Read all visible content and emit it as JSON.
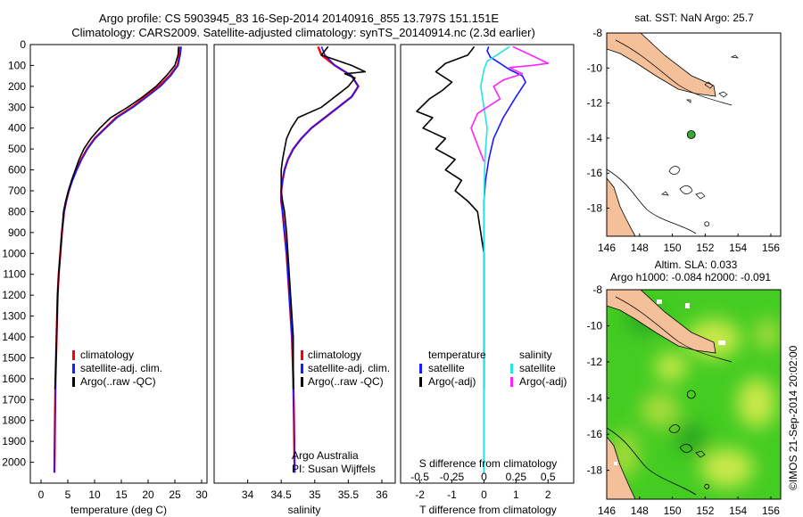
{
  "header": {
    "line1": "Argo profile: CS 5903945_83 16-Sep-2014 20140916_855 13.797S 151.151E",
    "line2": "Climatology: CARS2009. Satellite-adjusted climatology: synTS_20140914.nc (2.3d earlier)"
  },
  "colors": {
    "climatology": "#ff0000",
    "satellite": "#1a1aff",
    "argo": "#000000",
    "sal_satellite": "#22e6e6",
    "sal_argo": "#ff22ff",
    "land": "#f4c09a",
    "sla_field": "#44cc22"
  },
  "chart_data": [
    {
      "type": "line",
      "id": "temperature",
      "xlabel": "temperature (deg C)",
      "ylabel": "",
      "xlim": [
        -2,
        31
      ],
      "ylim": [
        2100,
        0
      ],
      "xticks": [
        0,
        5,
        10,
        15,
        20,
        25,
        30
      ],
      "yticks": [
        0,
        100,
        200,
        300,
        400,
        500,
        600,
        700,
        800,
        900,
        1000,
        1100,
        1200,
        1300,
        1400,
        1500,
        1600,
        1700,
        1800,
        1900,
        2000
      ],
      "legend": [
        "climatology",
        "satellite-adj. clim.",
        "Argo(..raw -QC)"
      ],
      "series": [
        {
          "name": "climatology",
          "color": "#ff0000",
          "x": [
            26.0,
            25.9,
            25.5,
            24,
            22,
            19.5,
            17,
            14,
            12,
            10,
            8.6,
            7.5,
            6.6,
            5.8,
            5.2,
            4.7,
            4.3,
            3.9,
            3.6,
            3.3,
            3.1,
            3.0,
            2.9,
            2.7,
            2.6,
            2.5
          ],
          "y": [
            10,
            50,
            100,
            150,
            200,
            250,
            300,
            350,
            400,
            450,
            500,
            550,
            600,
            650,
            700,
            750,
            800,
            900,
            1000,
            1100,
            1200,
            1300,
            1400,
            1600,
            1800,
            2050
          ]
        },
        {
          "name": "satellite-adj. clim.",
          "color": "#1a1aff",
          "x": [
            26.2,
            26.0,
            25.6,
            24.2,
            22.3,
            19.8,
            17.2,
            14.2,
            12.1,
            10.1,
            8.7,
            7.6,
            6.7,
            5.9,
            5.2,
            4.7,
            4.3,
            3.9,
            3.6,
            3.3,
            3.1,
            3.0,
            2.9,
            2.7,
            2.6,
            2.5
          ],
          "y": [
            10,
            50,
            100,
            150,
            200,
            250,
            300,
            350,
            400,
            450,
            500,
            550,
            600,
            650,
            700,
            750,
            800,
            900,
            1000,
            1100,
            1200,
            1300,
            1400,
            1600,
            1800,
            2050
          ]
        },
        {
          "name": "Argo(..raw -QC)",
          "color": "#000000",
          "x": [
            25.7,
            25.6,
            25.0,
            23.4,
            21.5,
            19.0,
            16.2,
            13.0,
            11.0,
            9.3,
            8.0,
            7.1,
            6.4,
            5.7,
            5.1,
            4.6,
            4.2,
            3.9,
            3.6,
            3.3,
            3.1,
            3.0,
            2.9,
            2.7,
            2.6
          ],
          "y": [
            10,
            50,
            100,
            150,
            200,
            250,
            300,
            350,
            400,
            450,
            500,
            550,
            600,
            650,
            700,
            750,
            800,
            900,
            1000,
            1100,
            1200,
            1300,
            1400,
            1600,
            1650
          ]
        }
      ]
    },
    {
      "type": "line",
      "id": "salinity",
      "xlabel": "salinity",
      "xlim": [
        33.5,
        36.2
      ],
      "ylim": [
        2100,
        0
      ],
      "xticks": [
        34,
        34.5,
        35,
        35.5,
        36
      ],
      "legend": [
        "climatology",
        "satellite-adj. clim.",
        "Argo(..raw -QC)"
      ],
      "annotation": [
        "Argo Australia",
        "PI: Susan Wijffels"
      ],
      "series": [
        {
          "name": "climatology",
          "color": "#ff0000",
          "x": [
            35.05,
            35.1,
            35.3,
            35.55,
            35.65,
            35.55,
            35.35,
            35.15,
            34.95,
            34.8,
            34.68,
            34.6,
            34.55,
            34.52,
            34.5,
            34.5,
            34.52,
            34.55,
            34.58,
            34.6,
            34.62,
            34.64,
            34.66,
            34.68,
            34.69,
            34.7
          ],
          "y": [
            10,
            50,
            100,
            150,
            200,
            250,
            300,
            350,
            400,
            450,
            500,
            550,
            600,
            650,
            700,
            750,
            800,
            900,
            1000,
            1100,
            1200,
            1300,
            1400,
            1600,
            1800,
            2050
          ]
        },
        {
          "name": "satellite-adj. clim.",
          "color": "#1a1aff",
          "x": [
            35.1,
            35.15,
            35.3,
            35.55,
            35.65,
            35.55,
            35.35,
            35.15,
            34.95,
            34.8,
            34.68,
            34.6,
            34.55,
            34.52,
            34.5,
            34.5,
            34.52,
            34.55,
            34.58,
            34.6,
            34.62,
            34.64,
            34.66,
            34.68,
            34.69,
            34.7
          ],
          "y": [
            10,
            50,
            100,
            150,
            200,
            250,
            300,
            350,
            400,
            450,
            500,
            550,
            600,
            650,
            700,
            750,
            800,
            900,
            1000,
            1100,
            1200,
            1300,
            1400,
            1600,
            1800,
            2050
          ]
        },
        {
          "name": "Argo(..raw -QC)",
          "color": "#000000",
          "x": [
            35.2,
            35.1,
            35.55,
            35.75,
            35.45,
            35.6,
            35.5,
            35.1,
            34.75,
            34.65,
            34.58,
            34.55,
            34.52,
            34.5,
            34.5,
            34.5,
            34.52,
            34.55,
            34.58,
            34.6,
            34.62,
            34.64,
            34.66,
            34.68,
            34.68
          ],
          "y": [
            10,
            50,
            100,
            130,
            140,
            160,
            200,
            300,
            350,
            400,
            450,
            500,
            550,
            600,
            650,
            700,
            750,
            800,
            900,
            1000,
            1100,
            1200,
            1300,
            1400,
            1650
          ]
        }
      ]
    },
    {
      "type": "line",
      "id": "difference",
      "xlabel": "T difference from climatology",
      "xlabel_top": "S difference from climatology",
      "xlim": [
        -2.6,
        2.8
      ],
      "ylim": [
        2100,
        0
      ],
      "xticks": [
        -2,
        -1,
        0,
        1,
        2
      ],
      "sticks_labels": [
        "-0.5",
        "-0.25",
        "0",
        "0.25",
        "0.5"
      ],
      "sticks_values": [
        -0.5,
        -0.25,
        0,
        0.25,
        0.5
      ],
      "legend_left": [
        "temperature",
        "satellite",
        "Argo(-adj)"
      ],
      "legend_right": [
        "salinity",
        "satellite",
        "Argo(-adj)"
      ],
      "series": [
        {
          "name": "temperature satellite",
          "color": "#1a1aff",
          "x": [
            0.15,
            0.1,
            0.2,
            0.5,
            0.8,
            1.2,
            1.3,
            1.0,
            0.6,
            0.3,
            0.15,
            0.05,
            0,
            0,
            0,
            0,
            0,
            0,
            0,
            0
          ],
          "y": [
            10,
            30,
            60,
            90,
            120,
            150,
            180,
            250,
            350,
            450,
            550,
            650,
            750,
            850,
            1000,
            1200,
            1400,
            1600,
            1800,
            2050
          ]
        },
        {
          "name": "temperature Argo(-adj)",
          "color": "#000000",
          "x": [
            -0.3,
            -0.5,
            -1.2,
            -1.5,
            -1.0,
            -1.3,
            -1.7,
            -2.1,
            -1.6,
            -1.9,
            -1.2,
            -1.5,
            -0.9,
            -1.2,
            -0.7,
            -0.9,
            -0.5,
            -0.2,
            -0.1,
            0,
            0
          ],
          "y": [
            10,
            50,
            90,
            130,
            180,
            220,
            260,
            320,
            350,
            400,
            450,
            500,
            550,
            600,
            650,
            700,
            750,
            800,
            900,
            1000,
            1650
          ]
        },
        {
          "name": "salinity satellite",
          "color": "#22e6e6",
          "x": [
            0.8,
            0.5,
            0.1,
            0.0,
            -0.1,
            0.0,
            0.1,
            0.05,
            0.02,
            0,
            0,
            0,
            0,
            0,
            0
          ],
          "y": [
            10,
            40,
            80,
            120,
            200,
            300,
            400,
            500,
            600,
            800,
            1000,
            1200,
            1500,
            1800,
            2050
          ]
        },
        {
          "name": "salinity Argo(-adj)",
          "color": "#ff22ff",
          "x": [
            0.9,
            1.6,
            2.0,
            1.5,
            0.8,
            1.2,
            0.6,
            0.3,
            0.5,
            -0.2,
            -0.4,
            -0.2,
            0.0
          ],
          "y": [
            10,
            60,
            90,
            100,
            110,
            140,
            170,
            200,
            260,
            330,
            400,
            480,
            560
          ]
        }
      ]
    },
    {
      "type": "scatter",
      "id": "sst_map",
      "title": "sat. SST: NaN Argo: 25.7",
      "xlim": [
        146,
        156.6
      ],
      "ylim": [
        -19.6,
        -8
      ],
      "xticks": [
        146,
        148,
        150,
        152,
        154,
        156
      ],
      "yticks": [
        -8,
        -10,
        -12,
        -14,
        -16,
        -18
      ],
      "points": [
        {
          "lon": 151.15,
          "lat": -13.8,
          "color": "#33aa33",
          "label": "Argo"
        },
        {
          "lon": 152.1,
          "lat": -18.9,
          "color": "none",
          "label": "marker"
        }
      ]
    },
    {
      "type": "heatmap",
      "id": "sla_map",
      "title_lines": [
        "Altim. SLA: 0.033",
        "Argo h1000: -0.084 h2000: -0.091"
      ],
      "xlim": [
        146,
        156.6
      ],
      "ylim": [
        -19.6,
        -8
      ],
      "xticks": [
        146,
        148,
        150,
        152,
        154,
        156
      ],
      "yticks": [
        -8,
        -10,
        -12,
        -14,
        -16,
        -18
      ],
      "points": [
        {
          "lon": 151.15,
          "lat": -13.8,
          "color": "#33aa33",
          "label": "Argo"
        },
        {
          "lon": 152.1,
          "lat": -18.9,
          "color": "none",
          "label": "marker"
        }
      ]
    }
  ],
  "watermark": "©IMOS 21-Sep-2014 20:02:00"
}
